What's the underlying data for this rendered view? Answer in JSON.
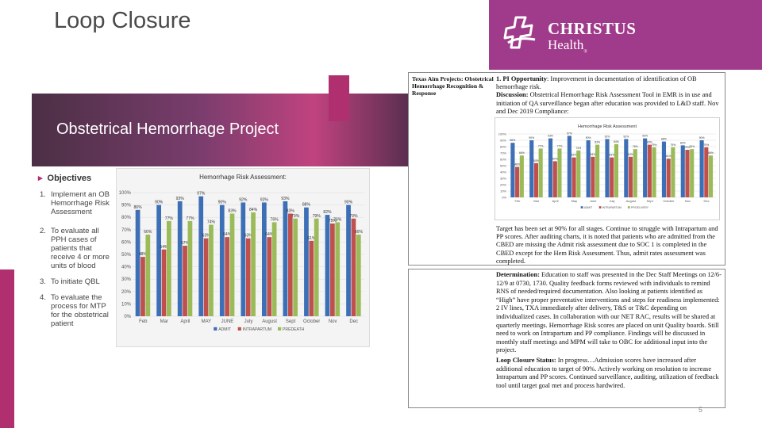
{
  "slide": {
    "title": "Loop Closure",
    "page_number": "5"
  },
  "logo": {
    "line1": "CHRISTUS",
    "line2": "Health",
    "reg": "®"
  },
  "left_slide": {
    "banner_title": "Obstetrical Hemorrhage Project",
    "objectives_heading": "Objectives",
    "objectives": [
      {
        "num": "1.",
        "text": "Implement an OB Hemorrhage Risk Assessment"
      },
      {
        "num": "2.",
        "text": "To evaluate all PPH cases of patients that receive 4 or more units of blood"
      },
      {
        "num": "3.",
        "text": "To initiate QBL"
      },
      {
        "num": "4.",
        "text": "To evaluate the process for MTP for the obstetrical patient"
      }
    ]
  },
  "doc": {
    "left_cell": "Texas Aim Projects: Obstetrical Hemorrhage Recognition & Response",
    "pi_label": "1. PI Opportunity",
    "pi_text": ": Improvement in documentation of identification of OB hemorrhage risk.",
    "discussion_label": "Discussion:",
    "discussion_text": " Obstetrical Hemorrhage Risk Assessment Tool in EMR is in use and initiation of QA surveillance began after education was provided to L&D staff. Nov and Dec 2019 Compliance:",
    "target_text": "Target has been set at 90% for all stages. Continue to struggle with Intrapartum and PP scores. After auditing charts, it is noted that patients who are admitted from the CBED are missing the Admit risk assessment due to SOC 1 is completed in the CBED except for the Hem Risk Assessment. Thus, admit rates assessment was completed.",
    "determination_label": "Determination:",
    "determination_text": " Education to staff was presented in the Dec Staff Meetings on 12/6-12/9 at 0730, 1730. Quality feedback forms reviewed with individuals to remind RNS of needed/required documentation. Also looking at patients identified as “High” have proper preventative interventions and steps for readiness implemented: 2 IV lines, TXA immediately after delivery, T&S or T&C depending on individualized cases. In collaboration with our NET RAC, results will be shared at quarterly meetings. Hemorrhage Risk scores are placed on unit Quality boards. Still need to work on Intrapartum and PP compliance. Findings will be discussed in monthly staff meetings and MPM will take to OBC for additional input into the project.",
    "loop_label": "Loop Closure Status:",
    "loop_text": " In progress…Admission scores have increased after additional education to target of 90%. Actively working on resolution to increase Intrapartum and PP scores. Continued surveillance, auditing, utilization of feedback tool until target goal met and process hardwired."
  },
  "chart_data": [
    {
      "type": "bar",
      "title": "Hemorrhage Risk Assessment:",
      "categories": [
        "Feb",
        "Mar",
        "April",
        "MAY",
        "JUNE",
        "July",
        "August",
        "Sept",
        "October",
        "Nov",
        "Dec"
      ],
      "series": [
        {
          "name": "ADMIT",
          "color": "#3d6fb6",
          "values": [
            86,
            90,
            93,
            97,
            90,
            92,
            92,
            93,
            88,
            82,
            90
          ]
        },
        {
          "name": "INTRAPARTUM",
          "color": "#c0504d",
          "values": [
            48,
            54,
            57,
            63,
            64,
            63,
            64,
            83,
            61,
            75,
            79
          ]
        },
        {
          "name": "PREDEATH",
          "color": "#9bbb59",
          "values": [
            66,
            77,
            77,
            74,
            83,
            84,
            76,
            79,
            79,
            76,
            66
          ]
        }
      ],
      "ylim": [
        0,
        100
      ],
      "yticks": [
        "0%",
        "10%",
        "20%",
        "30%",
        "40%",
        "50%",
        "60%",
        "70%",
        "80%",
        "90%",
        "100%"
      ]
    },
    {
      "type": "bar",
      "title": "Hemorrhage Risk Assessment",
      "categories": [
        "Feb",
        "Mar",
        "April",
        "May",
        "June",
        "July",
        "August",
        "Sept",
        "October",
        "Nov",
        "Dec"
      ],
      "series": [
        {
          "name": "ADMIT",
          "color": "#3d6fb6",
          "values": [
            86,
            90,
            93,
            97,
            90,
            92,
            92,
            93,
            88,
            82,
            90
          ]
        },
        {
          "name": "INTRAPARTUM",
          "color": "#c0504d",
          "values": [
            48,
            54,
            57,
            63,
            64,
            63,
            64,
            83,
            61,
            75,
            79
          ]
        },
        {
          "name": "PP/DELIVERY",
          "color": "#9bbb59",
          "values": [
            66,
            77,
            77,
            74,
            83,
            84,
            76,
            79,
            79,
            76,
            66
          ]
        }
      ],
      "ylim": [
        0,
        100
      ],
      "yticks": [
        "0%",
        "10%",
        "20%",
        "30%",
        "40%",
        "50%",
        "60%",
        "70%",
        "80%",
        "90%",
        "100%"
      ]
    }
  ]
}
